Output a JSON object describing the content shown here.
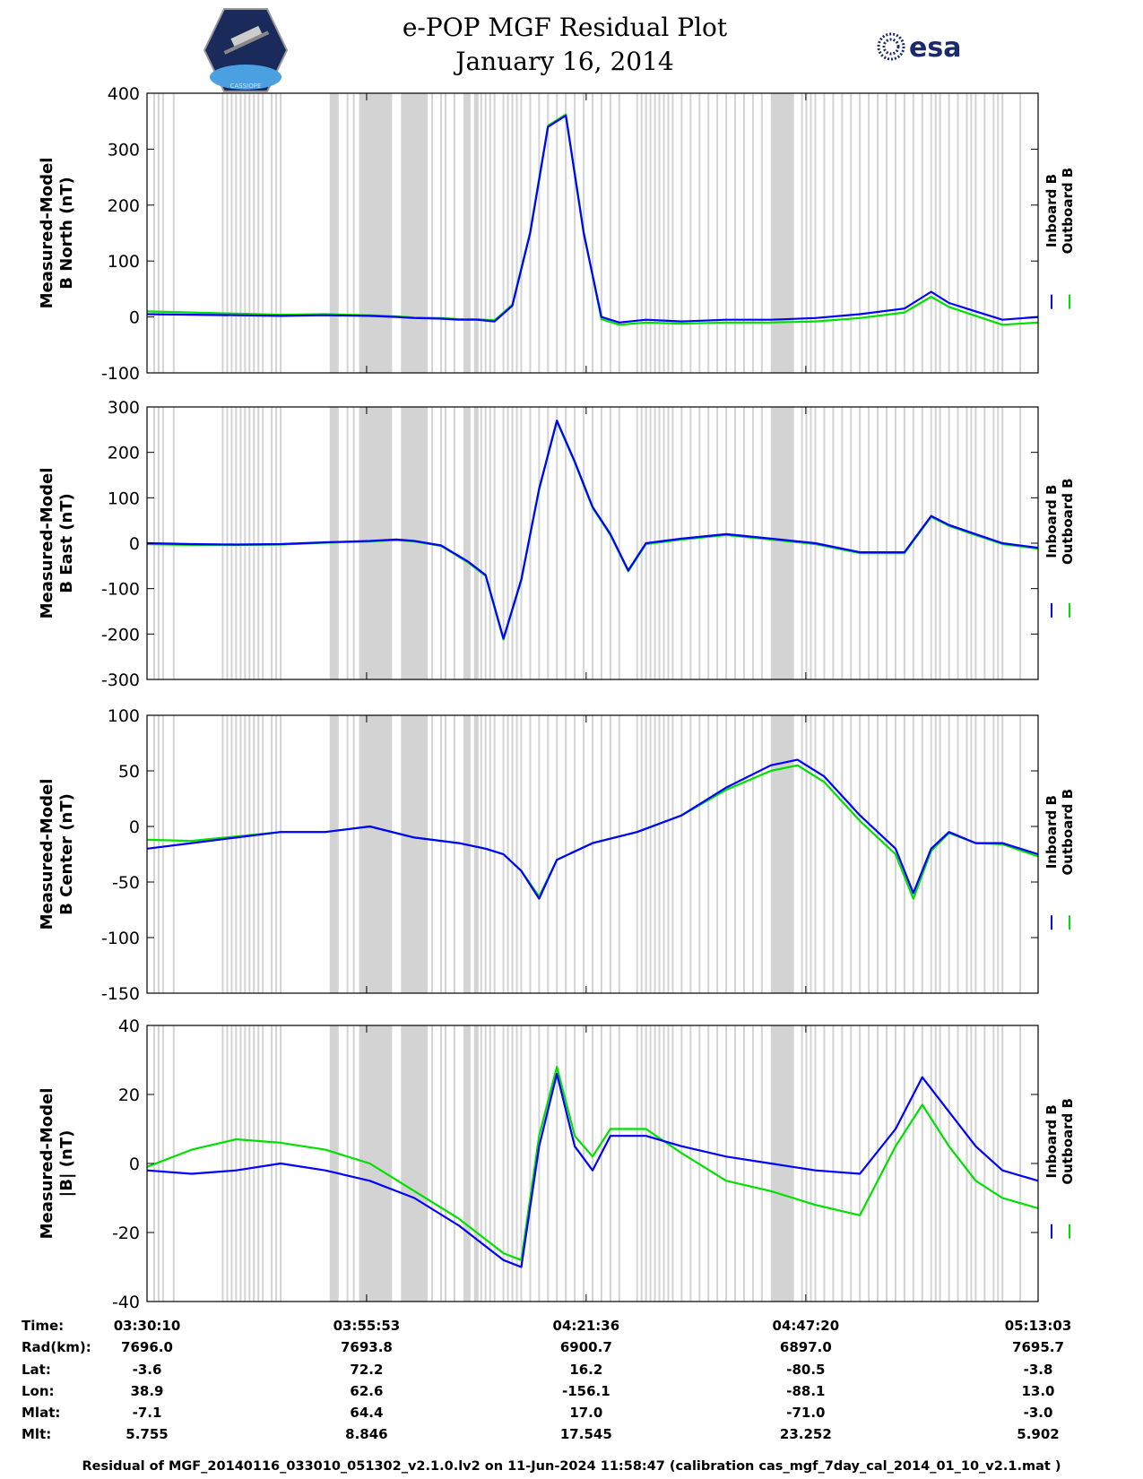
{
  "header": {
    "title_line1": "e-POP MGF Residual Plot",
    "title_line2": "January 16, 2014",
    "left_logo_caption": "CASSIOPE",
    "right_logo_text": "esa"
  },
  "chart_data": [
    {
      "type": "line",
      "ylabel_line1": "Measured-Model",
      "ylabel_line2": "B North (nT)",
      "ylim": [
        -100,
        400
      ],
      "yticks": [
        -100,
        0,
        100,
        200,
        300,
        400
      ],
      "ytick_labels": [
        "-100",
        "0",
        "100",
        "200",
        "300",
        "400"
      ],
      "series": [
        {
          "name": "Inboard B",
          "color": "#0000ff",
          "x": [
            0,
            0.05,
            0.1,
            0.15,
            0.2,
            0.25,
            0.28,
            0.3,
            0.33,
            0.35,
            0.37,
            0.39,
            0.41,
            0.43,
            0.45,
            0.47,
            0.49,
            0.51,
            0.53,
            0.56,
            0.6,
            0.65,
            0.7,
            0.75,
            0.8,
            0.85,
            0.88,
            0.9,
            0.93,
            0.96,
            1.0
          ],
          "values": [
            5,
            4,
            3,
            2,
            3,
            2,
            0,
            -2,
            -3,
            -5,
            -5,
            -8,
            20,
            150,
            340,
            360,
            150,
            0,
            -10,
            -5,
            -8,
            -5,
            -5,
            -2,
            5,
            15,
            45,
            25,
            10,
            -5,
            0
          ]
        },
        {
          "name": "Outboard B",
          "color": "#00e000",
          "x": [
            0,
            0.05,
            0.1,
            0.15,
            0.2,
            0.25,
            0.28,
            0.3,
            0.33,
            0.35,
            0.37,
            0.39,
            0.41,
            0.43,
            0.45,
            0.47,
            0.49,
            0.51,
            0.53,
            0.56,
            0.6,
            0.65,
            0.7,
            0.75,
            0.8,
            0.85,
            0.88,
            0.9,
            0.93,
            0.96,
            1.0
          ],
          "values": [
            10,
            8,
            6,
            4,
            5,
            3,
            1,
            -1,
            -2,
            -4,
            -4,
            -6,
            22,
            152,
            342,
            362,
            152,
            -4,
            -14,
            -10,
            -12,
            -10,
            -10,
            -8,
            -2,
            8,
            36,
            18,
            2,
            -14,
            -10
          ]
        }
      ]
    },
    {
      "type": "line",
      "ylabel_line1": "Measured-Model",
      "ylabel_line2": "B East (nT)",
      "ylim": [
        -300,
        300
      ],
      "yticks": [
        -300,
        -200,
        -100,
        0,
        100,
        200,
        300
      ],
      "ytick_labels": [
        "-300",
        "-200",
        "-100",
        "0",
        "100",
        "200",
        "300"
      ],
      "series": [
        {
          "name": "Inboard B",
          "color": "#0000ff",
          "x": [
            0,
            0.05,
            0.1,
            0.15,
            0.2,
            0.25,
            0.28,
            0.3,
            0.33,
            0.36,
            0.38,
            0.4,
            0.42,
            0.44,
            0.46,
            0.48,
            0.5,
            0.52,
            0.54,
            0.56,
            0.6,
            0.65,
            0.7,
            0.75,
            0.8,
            0.85,
            0.88,
            0.9,
            0.93,
            0.96,
            1.0
          ],
          "values": [
            0,
            -2,
            -3,
            -2,
            2,
            5,
            8,
            5,
            -5,
            -40,
            -70,
            -210,
            -80,
            120,
            270,
            180,
            80,
            20,
            -60,
            0,
            10,
            20,
            10,
            0,
            -20,
            -20,
            60,
            40,
            20,
            0,
            -10
          ]
        },
        {
          "name": "Outboard B",
          "color": "#00e000",
          "x": [
            0,
            0.05,
            0.1,
            0.15,
            0.2,
            0.25,
            0.28,
            0.3,
            0.33,
            0.36,
            0.38,
            0.4,
            0.42,
            0.44,
            0.46,
            0.48,
            0.5,
            0.52,
            0.54,
            0.56,
            0.6,
            0.65,
            0.7,
            0.75,
            0.8,
            0.85,
            0.88,
            0.9,
            0.93,
            0.96,
            1.0
          ],
          "values": [
            -2,
            -4,
            -4,
            -3,
            1,
            4,
            7,
            4,
            -6,
            -42,
            -72,
            -212,
            -82,
            118,
            268,
            178,
            78,
            18,
            -62,
            -2,
            8,
            18,
            8,
            -2,
            -22,
            -22,
            58,
            38,
            18,
            -2,
            -12
          ]
        }
      ]
    },
    {
      "type": "line",
      "ylabel_line1": "Measured-Model",
      "ylabel_line2": "B Center (nT)",
      "ylim": [
        -150,
        100
      ],
      "yticks": [
        -150,
        -100,
        -50,
        0,
        50,
        100
      ],
      "ytick_labels": [
        "-150",
        "-100",
        "-50",
        "0",
        "50",
        "100"
      ],
      "series": [
        {
          "name": "Inboard B",
          "color": "#0000ff",
          "x": [
            0,
            0.05,
            0.1,
            0.15,
            0.2,
            0.25,
            0.3,
            0.35,
            0.38,
            0.4,
            0.42,
            0.44,
            0.46,
            0.5,
            0.55,
            0.6,
            0.65,
            0.7,
            0.73,
            0.76,
            0.8,
            0.84,
            0.86,
            0.88,
            0.9,
            0.93,
            0.96,
            1.0
          ],
          "values": [
            -20,
            -15,
            -10,
            -5,
            -5,
            0,
            -10,
            -15,
            -20,
            -25,
            -40,
            -65,
            -30,
            -15,
            -5,
            10,
            35,
            55,
            60,
            45,
            10,
            -20,
            -60,
            -20,
            -5,
            -15,
            -15,
            -25
          ]
        },
        {
          "name": "Outboard B",
          "color": "#00e000",
          "x": [
            0,
            0.05,
            0.1,
            0.15,
            0.2,
            0.25,
            0.3,
            0.35,
            0.38,
            0.4,
            0.42,
            0.44,
            0.46,
            0.5,
            0.55,
            0.6,
            0.65,
            0.7,
            0.73,
            0.76,
            0.8,
            0.84,
            0.86,
            0.88,
            0.9,
            0.93,
            0.96,
            1.0
          ],
          "values": [
            -12,
            -13,
            -9,
            -5,
            -5,
            0,
            -10,
            -15,
            -20,
            -25,
            -40,
            -63,
            -30,
            -15,
            -5,
            10,
            33,
            50,
            55,
            40,
            5,
            -25,
            -65,
            -22,
            -6,
            -15,
            -16,
            -27
          ]
        }
      ]
    },
    {
      "type": "line",
      "ylabel_line1": "Measured-Model",
      "ylabel_line2": "|B| (nT)",
      "ylim": [
        -40,
        40
      ],
      "yticks": [
        -40,
        -20,
        0,
        20,
        40
      ],
      "ytick_labels": [
        "-40",
        "-20",
        "0",
        "20",
        "40"
      ],
      "series": [
        {
          "name": "Inboard B",
          "color": "#0000ff",
          "x": [
            0,
            0.05,
            0.1,
            0.15,
            0.2,
            0.25,
            0.3,
            0.35,
            0.4,
            0.42,
            0.44,
            0.46,
            0.48,
            0.5,
            0.52,
            0.56,
            0.6,
            0.65,
            0.7,
            0.75,
            0.8,
            0.84,
            0.87,
            0.9,
            0.93,
            0.96,
            1.0
          ],
          "values": [
            -2,
            -3,
            -2,
            0,
            -2,
            -5,
            -10,
            -18,
            -28,
            -30,
            5,
            26,
            5,
            -2,
            8,
            8,
            5,
            2,
            0,
            -2,
            -3,
            10,
            25,
            15,
            5,
            -2,
            -5
          ]
        },
        {
          "name": "Outboard B",
          "color": "#00e000",
          "x": [
            0,
            0.05,
            0.1,
            0.15,
            0.2,
            0.25,
            0.3,
            0.35,
            0.4,
            0.42,
            0.44,
            0.46,
            0.48,
            0.5,
            0.52,
            0.56,
            0.6,
            0.65,
            0.7,
            0.75,
            0.8,
            0.84,
            0.87,
            0.9,
            0.93,
            0.96,
            1.0
          ],
          "values": [
            -1,
            4,
            7,
            6,
            4,
            0,
            -8,
            -16,
            -26,
            -28,
            8,
            28,
            8,
            2,
            10,
            10,
            3,
            -5,
            -8,
            -12,
            -15,
            5,
            17,
            5,
            -5,
            -10,
            -13
          ]
        }
      ]
    }
  ],
  "x_tick_times": [
    "03:30:10",
    "03:55:53",
    "04:21:36",
    "04:47:20",
    "05:13:03"
  ],
  "legend": {
    "inboard": "Inboard B",
    "outboard": "Outboard B"
  },
  "ephemeris": {
    "rows": [
      {
        "label": "Time:",
        "values": [
          "03:30:10",
          "03:55:53",
          "04:21:36",
          "04:47:20",
          "05:13:03"
        ]
      },
      {
        "label": "Rad(km):",
        "values": [
          "7696.0",
          "7693.8",
          "6900.7",
          "6897.0",
          "7695.7"
        ]
      },
      {
        "label": "Lat:",
        "values": [
          "-3.6",
          "72.2",
          "16.2",
          "-80.5",
          "-3.8"
        ]
      },
      {
        "label": "Lon:",
        "values": [
          "38.9",
          "62.6",
          "-156.1",
          "-88.1",
          "13.0"
        ]
      },
      {
        "label": "Mlat:",
        "values": [
          "-7.1",
          "64.4",
          "17.0",
          "-71.0",
          "-3.0"
        ]
      },
      {
        "label": "Mlt:",
        "values": [
          "5.755",
          "8.846",
          "17.545",
          "23.252",
          "5.902"
        ]
      }
    ]
  },
  "footer": "Residual of MGF_20140116_033010_051302_v2.1.0.lv2 on 11-Jun-2024 11:58:47 (calibration cas_mgf_7day_cal_2014_01_10_v2.1.mat )",
  "colors": {
    "inboard": "#0000ff",
    "outboard": "#00e000",
    "shade": "#d3d3d3"
  }
}
